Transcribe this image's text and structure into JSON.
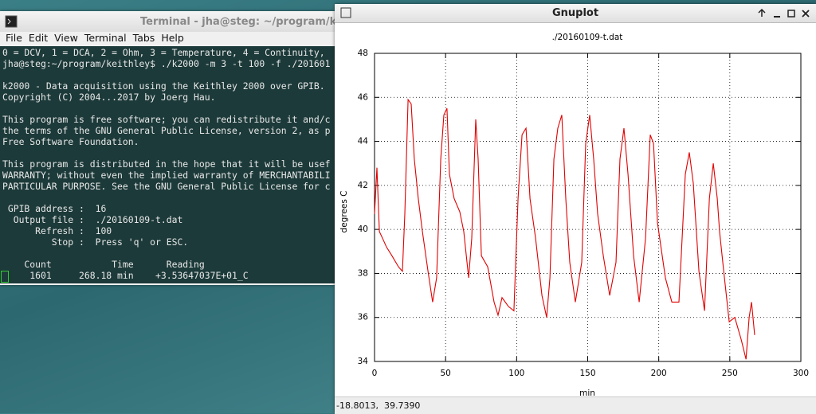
{
  "terminal": {
    "title": "Terminal - jha@steg: ~/program/keit",
    "menu": [
      "File",
      "Edit",
      "View",
      "Terminal",
      "Tabs",
      "Help"
    ],
    "blocks": [
      [
        "0 = DCV, 1 = DCA, 2 = Ohm, 3 = Temperature, 4 = Continuity,",
        "jha@steg:~/program/keithley$ ./k2000 -m 3 -t 100 -f ./201601"
      ],
      [
        "k2000 - Data acquisition using the Keithley 2000 over GPIB.",
        "Copyright (C) 2004...2017 by Joerg Hau."
      ],
      [
        "This program is free software; you can redistribute it and/c",
        "the terms of the GNU General Public License, version 2, as p",
        "Free Software Foundation."
      ],
      [
        "This program is distributed in the hope that it will be usef",
        "WARRANTY; without even the implied warranty of MERCHANTABILI",
        "PARTICULAR PURPOSE. See the GNU General Public License for c"
      ],
      [
        " GPIB address :  16",
        "  Output file :  ./20160109-t.dat",
        "      Refresh :  100",
        "         Stop :  Press 'q' or ESC."
      ],
      [
        "    Count           Time      Reading",
        "     1601     268.18 min    +3.53647037E+01_C"
      ]
    ]
  },
  "gnuplot": {
    "title": "Gnuplot",
    "status": "-18.8013,  39.7390"
  },
  "chart_data": {
    "type": "line",
    "title": "./20160109-t.dat",
    "x_label": "min",
    "y_label": "degrees C",
    "color": "#e00000",
    "grid": true,
    "x": [
      0,
      1.7,
      3.4,
      5.6,
      8.4,
      12.3,
      16.8,
      19.6,
      21.3,
      23.6,
      25.8,
      28,
      30.8,
      33.7,
      37.6,
      40.9,
      43.7,
      46.6,
      48.8,
      51,
      52.7,
      56,
      60,
      62.8,
      66.2,
      68.4,
      71.2,
      72.9,
      75.2,
      79.6,
      84.1,
      86.9,
      89.7,
      94.2,
      98.1,
      101,
      103.8,
      106.6,
      109.4,
      113.3,
      117.8,
      121.1,
      123.4,
      126.2,
      129,
      131.8,
      134.6,
      137.4,
      141.3,
      145.8,
      148.6,
      151.4,
      154.2,
      157,
      161,
      165.5,
      169.9,
      172.7,
      175.5,
      178.4,
      182.3,
      186.2,
      190.7,
      194,
      196.3,
      199.1,
      204.7,
      209.2,
      214.2,
      218.7,
      221.5,
      224.3,
      228.3,
      232.2,
      235.6,
      238.4,
      241.2,
      242.8,
      245.7,
      249.6,
      253.5,
      258,
      261.4,
      263.6,
      265.3,
      267.5
    ],
    "values": [
      40.7,
      42.8,
      39.9,
      39.6,
      39.2,
      38.8,
      38.3,
      38.1,
      40.7,
      45.9,
      45.7,
      43.2,
      41.4,
      39.9,
      38.1,
      36.7,
      37.8,
      43.2,
      45.2,
      45.5,
      42.5,
      41.4,
      40.8,
      39.9,
      37.8,
      39.6,
      45.0,
      43.2,
      38.8,
      38.3,
      36.7,
      36.1,
      36.9,
      36.5,
      36.3,
      41.4,
      44.3,
      44.6,
      41.4,
      39.6,
      37.0,
      36.0,
      37.8,
      43.2,
      44.6,
      45.2,
      41.4,
      38.5,
      36.7,
      38.5,
      43.9,
      45.2,
      43.2,
      40.7,
      38.8,
      37.0,
      38.5,
      43.2,
      44.6,
      42.5,
      38.8,
      36.7,
      39.6,
      44.3,
      43.9,
      40.3,
      37.8,
      36.7,
      36.7,
      42.5,
      43.5,
      42.1,
      38.1,
      36.3,
      41.4,
      43.0,
      41.4,
      39.9,
      38.1,
      35.8,
      36.0,
      35.0,
      34.1,
      36.0,
      36.7,
      35.2
    ],
    "xlim": [
      0,
      300
    ],
    "xticks": [
      0,
      50,
      100,
      150,
      200,
      250,
      300
    ],
    "ylim": [
      34,
      48
    ],
    "yticks": [
      34,
      36,
      38,
      40,
      42,
      44,
      46,
      48
    ]
  }
}
